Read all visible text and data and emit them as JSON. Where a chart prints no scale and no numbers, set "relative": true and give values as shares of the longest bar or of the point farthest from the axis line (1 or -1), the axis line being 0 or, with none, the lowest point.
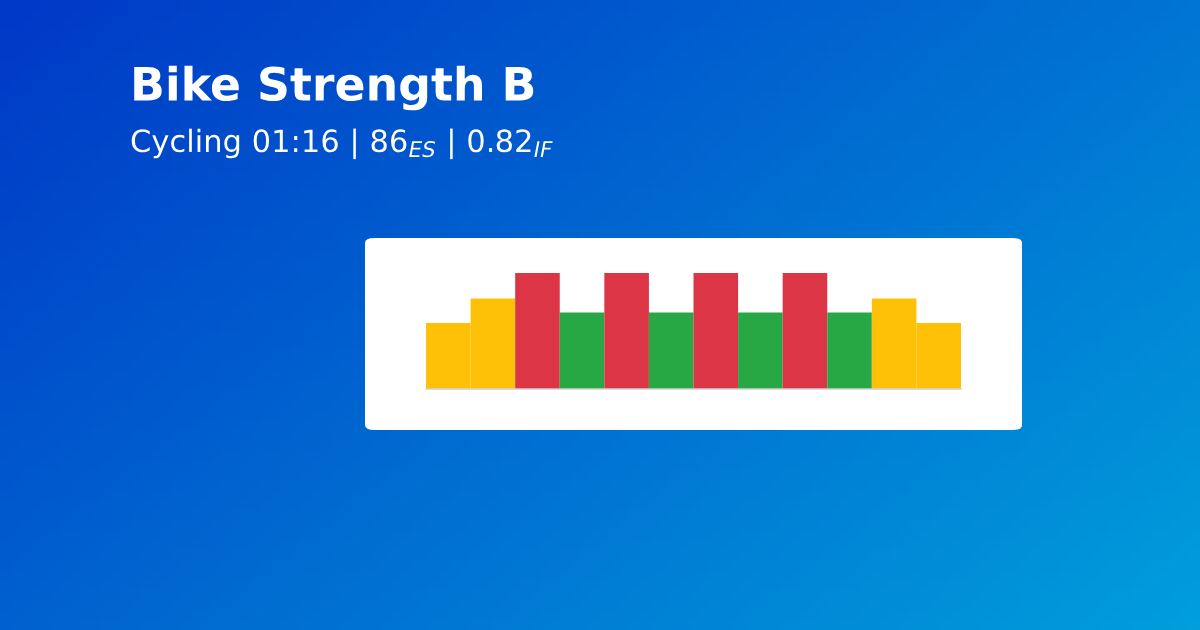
{
  "chart_data": {
    "type": "bar",
    "title": "Bike Strength B",
    "subtitle": "Cycling 01:16 | 86$_{ES}$ | 0.82$_{IF}$",
    "relative": true,
    "categories": [
      null,
      null,
      null,
      null,
      null,
      null,
      null,
      null,
      null,
      null,
      null,
      null
    ],
    "values": [
      0.57,
      0.78,
      1,
      0.66,
      1,
      0.66,
      1,
      0.66,
      1,
      0.66,
      0.78,
      0.57
    ],
    "colors": [
      "#ffc107",
      "#ffc107",
      "#dc3545",
      "#28a745",
      "#dc3545",
      "#28a745",
      "#dc3545",
      "#28a745",
      "#dc3545",
      "#28a745",
      "#ffc107",
      "#ffc107"
    ]
  }
}
